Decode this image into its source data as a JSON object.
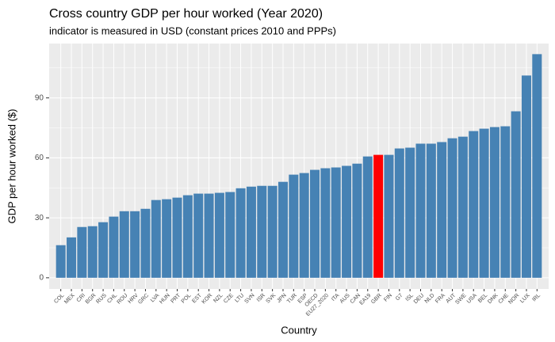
{
  "chart_data": {
    "type": "bar",
    "title": "Cross country GDP per hour worked (Year 2020)",
    "subtitle": "indicator is measured in USD (constant prices 2010 and PPPs)",
    "x_label": "Country",
    "y_label": "GDP per hour worked ($)",
    "categories": [
      "COL",
      "MEX",
      "CRI",
      "BGR",
      "RUS",
      "CHL",
      "ROU",
      "HRV",
      "GRC",
      "LVA",
      "HUN",
      "PRT",
      "POL",
      "EST",
      "KOR",
      "NZL",
      "CZE",
      "LTU",
      "SVN",
      "ISR",
      "SVK",
      "JPN",
      "TUR",
      "ESP",
      "OECD",
      "EU27_2020",
      "ITA",
      "AUS",
      "CAN",
      "EA19",
      "GBR",
      "FIN",
      "G7",
      "ISL",
      "DEU",
      "NLD",
      "FRA",
      "AUT",
      "SWE",
      "USA",
      "BEL",
      "DNK",
      "CHE",
      "NOR",
      "LUX",
      "IRL"
    ],
    "values": [
      16.3,
      20.2,
      25.4,
      25.8,
      27.8,
      30.6,
      33.3,
      33.3,
      34.5,
      38.9,
      39.3,
      40.1,
      41.3,
      42.1,
      42.1,
      42.5,
      42.9,
      44.8,
      45.6,
      46.0,
      46.0,
      48.0,
      51.6,
      52.4,
      54.0,
      54.8,
      55.2,
      56.0,
      57.1,
      60.7,
      61.5,
      61.5,
      64.7,
      65.1,
      67.1,
      67.1,
      67.9,
      69.8,
      70.6,
      73.4,
      74.6,
      75.4,
      75.8,
      83.3,
      101.2,
      111.9
    ],
    "colors": [
      "#4682b4",
      "#4682b4",
      "#4682b4",
      "#4682b4",
      "#4682b4",
      "#4682b4",
      "#4682b4",
      "#4682b4",
      "#4682b4",
      "#4682b4",
      "#4682b4",
      "#4682b4",
      "#4682b4",
      "#4682b4",
      "#4682b4",
      "#4682b4",
      "#4682b4",
      "#4682b4",
      "#4682b4",
      "#4682b4",
      "#4682b4",
      "#4682b4",
      "#4682b4",
      "#4682b4",
      "#4682b4",
      "#4682b4",
      "#4682b4",
      "#4682b4",
      "#4682b4",
      "#4682b4",
      "#ff0000",
      "#4682b4",
      "#4682b4",
      "#4682b4",
      "#4682b4",
      "#4682b4",
      "#4682b4",
      "#4682b4",
      "#4682b4",
      "#4682b4",
      "#4682b4",
      "#4682b4",
      "#4682b4",
      "#4682b4",
      "#4682b4",
      "#4682b4"
    ],
    "ylim": [
      -5.6,
      117.2
    ],
    "yticks": [
      0,
      30,
      60,
      90
    ],
    "grid": true
  }
}
